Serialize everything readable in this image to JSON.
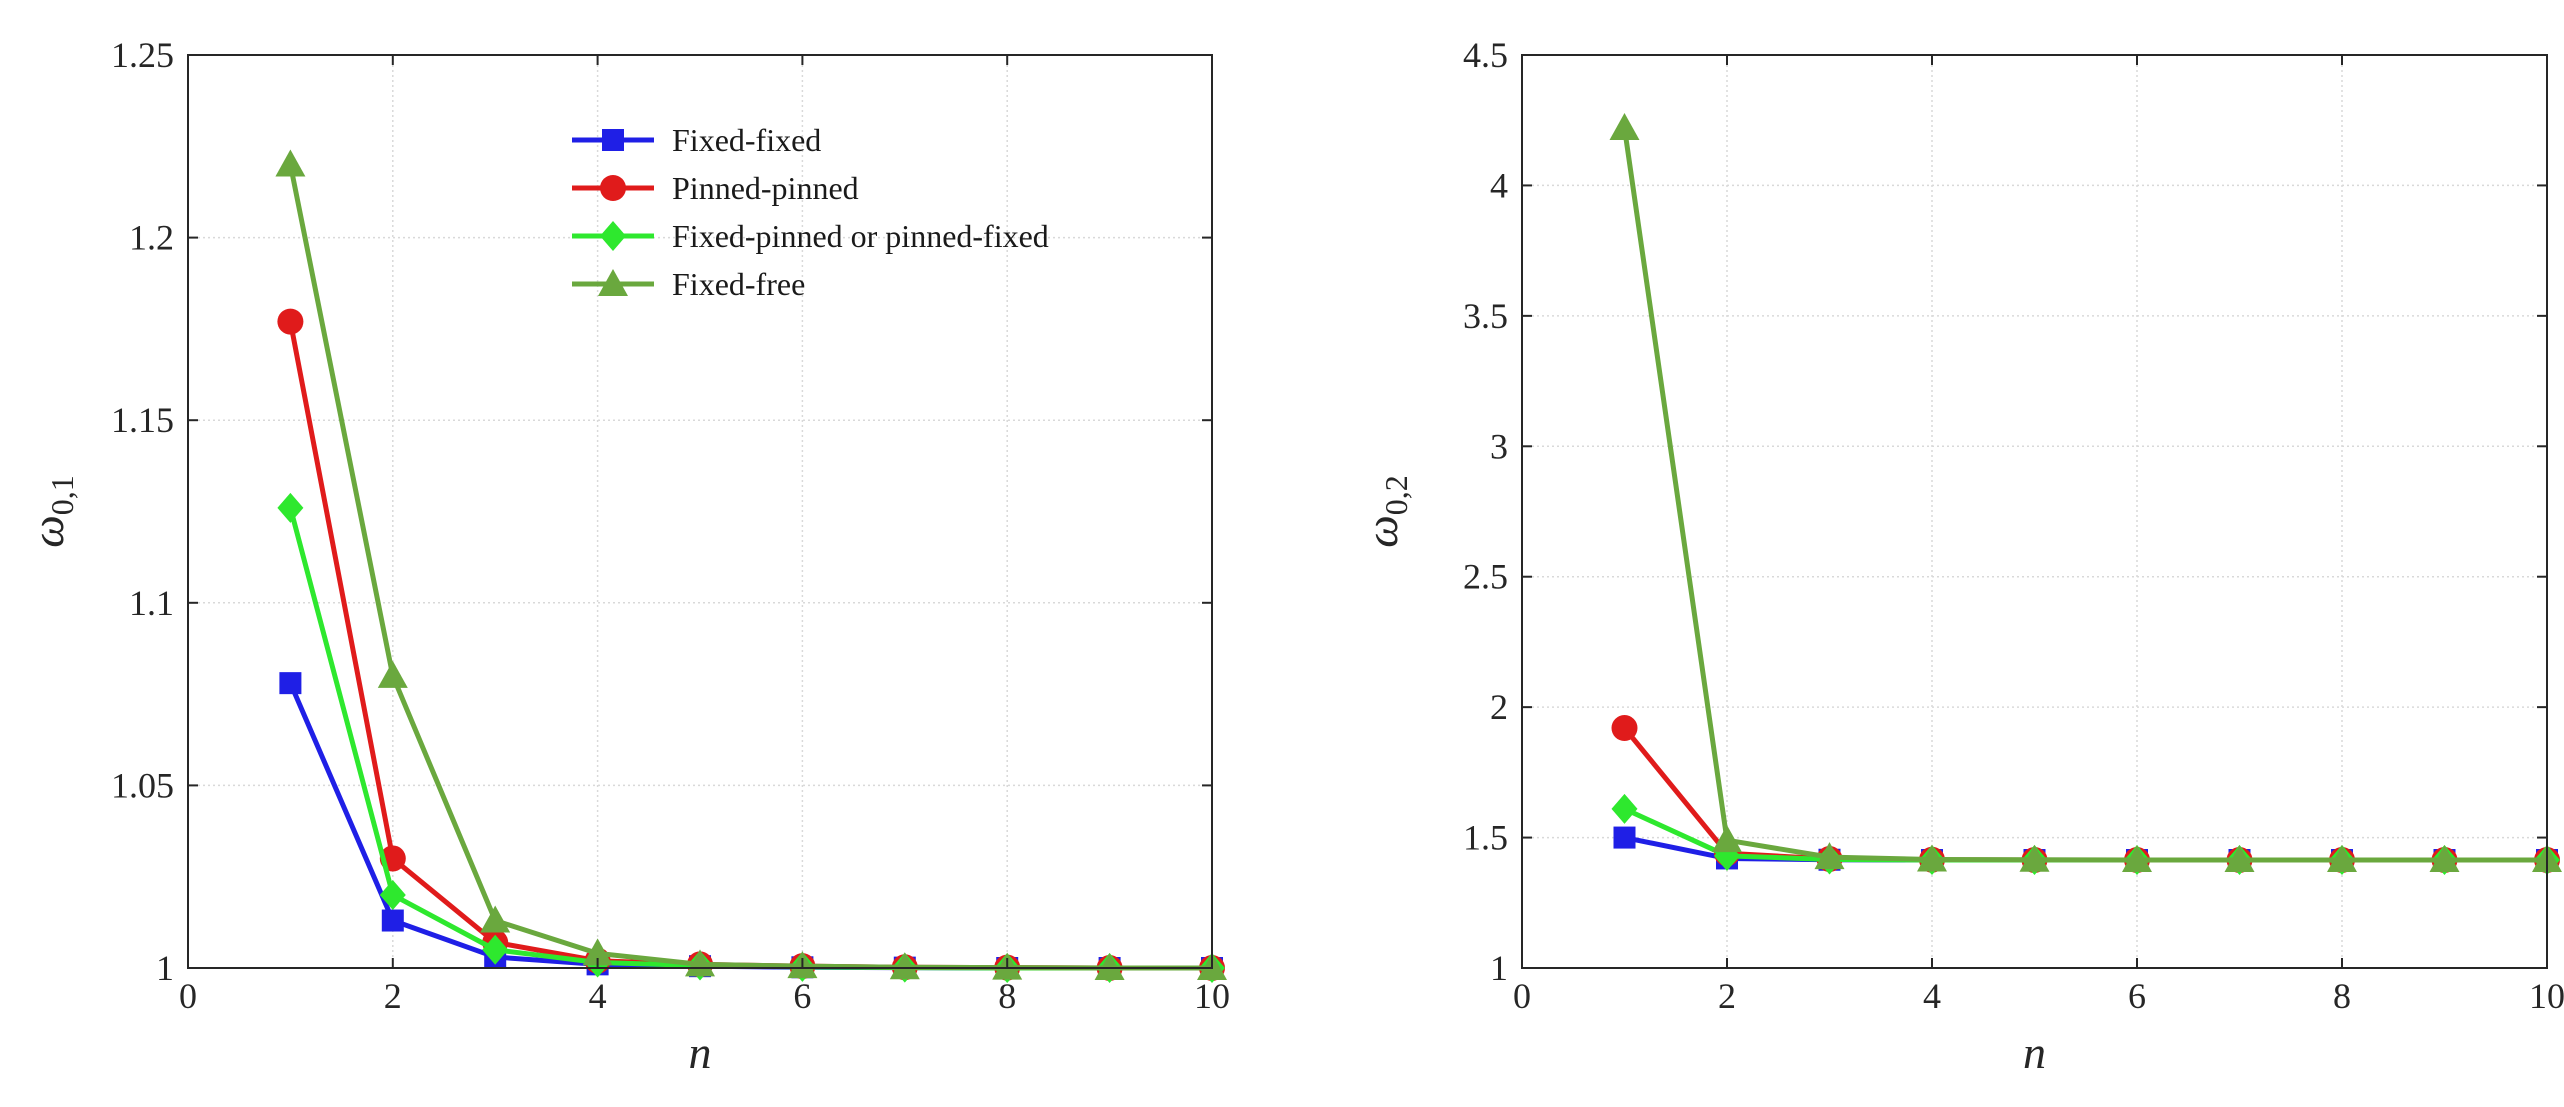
{
  "chart_data": [
    {
      "type": "line",
      "title": "",
      "xlabel": "n",
      "ylabel": "ω0,1",
      "ylabel_parts": {
        "base": "ω",
        "sub": "0,1"
      },
      "xlim": [
        0,
        10
      ],
      "ylim": [
        1,
        1.25
      ],
      "xticks": [
        0,
        2,
        4,
        6,
        8,
        10
      ],
      "yticks": [
        1,
        1.05,
        1.1,
        1.15,
        1.2,
        1.25
      ],
      "ytick_labels": [
        "1",
        "1.05",
        "1.1",
        "1.15",
        "1.2",
        "1.25"
      ],
      "grid": true,
      "legend": "top-right",
      "x": [
        1,
        2,
        3,
        4,
        5,
        6,
        7,
        8,
        9,
        10
      ],
      "series": [
        {
          "name": "Fixed-fixed",
          "color": "#1f1fe6",
          "marker": "square",
          "values": [
            1.078,
            1.013,
            1.003,
            1.001,
            1.0005,
            1.0002,
            1.0001,
            1.0,
            1.0,
            1.0
          ]
        },
        {
          "name": "Pinned-pinned",
          "color": "#e01b1b",
          "marker": "circle",
          "values": [
            1.177,
            1.03,
            1.007,
            1.002,
            1.001,
            1.0005,
            1.0002,
            1.0001,
            1.0,
            1.0
          ]
        },
        {
          "name": "Fixed-pinned or pinned-fixed",
          "color": "#2ee82e",
          "marker": "diamond",
          "values": [
            1.126,
            1.02,
            1.005,
            1.0015,
            1.0007,
            1.0003,
            1.0001,
            1.0,
            1.0,
            1.0
          ]
        },
        {
          "name": "Fixed-free",
          "color": "#6aa83e",
          "marker": "triangle",
          "values": [
            1.22,
            1.08,
            1.013,
            1.004,
            1.001,
            1.0005,
            1.0002,
            1.0001,
            1.0,
            1.0
          ]
        }
      ]
    },
    {
      "type": "line",
      "title": "",
      "xlabel": "n",
      "ylabel": "ω0,2",
      "ylabel_parts": {
        "base": "ω",
        "sub": "0,2"
      },
      "xlim": [
        0,
        10
      ],
      "ylim": [
        1,
        4.5
      ],
      "xticks": [
        0,
        2,
        4,
        6,
        8,
        10
      ],
      "yticks": [
        1,
        1.5,
        2,
        2.5,
        3,
        3.5,
        4,
        4.5
      ],
      "ytick_labels": [
        "1",
        "1.5",
        "2",
        "2.5",
        "3",
        "3.5",
        "4",
        "4.5"
      ],
      "grid": true,
      "legend": "none",
      "x": [
        1,
        2,
        3,
        4,
        5,
        6,
        7,
        8,
        9,
        10
      ],
      "series": [
        {
          "name": "Fixed-fixed",
          "color": "#1f1fe6",
          "marker": "square",
          "values": [
            1.5,
            1.42,
            1.415,
            1.414,
            1.414,
            1.414,
            1.414,
            1.414,
            1.414,
            1.414
          ]
        },
        {
          "name": "Pinned-pinned",
          "color": "#e01b1b",
          "marker": "circle",
          "values": [
            1.92,
            1.44,
            1.418,
            1.415,
            1.414,
            1.414,
            1.414,
            1.414,
            1.414,
            1.414
          ]
        },
        {
          "name": "Fixed-pinned or pinned-fixed",
          "color": "#2ee82e",
          "marker": "diamond",
          "values": [
            1.61,
            1.43,
            1.416,
            1.414,
            1.414,
            1.414,
            1.414,
            1.414,
            1.414,
            1.414
          ]
        },
        {
          "name": "Fixed-free",
          "color": "#6aa83e",
          "marker": "triangle",
          "values": [
            4.22,
            1.49,
            1.425,
            1.416,
            1.415,
            1.414,
            1.414,
            1.414,
            1.414,
            1.414
          ]
        }
      ]
    }
  ]
}
